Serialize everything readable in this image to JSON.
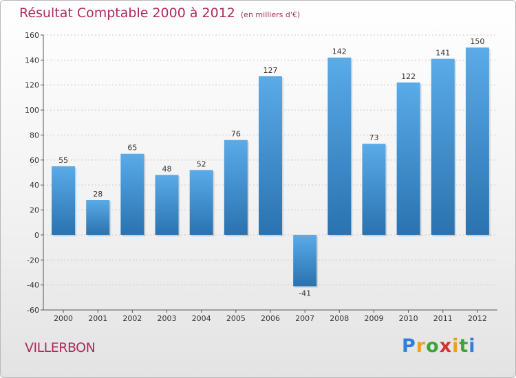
{
  "title": "Résultat Comptable 2000 à 2012",
  "unit": "(en milliers d'€)",
  "town": "VILLERBON",
  "logo": {
    "letters": [
      "P",
      "r",
      "o",
      "x",
      "i",
      "t",
      "i"
    ],
    "colors": [
      "#2f7ed8",
      "#e8a31c",
      "#3aa63a",
      "#d83030",
      "#e8a31c",
      "#3aa63a",
      "#2f7ed8"
    ]
  },
  "colors": {
    "bar_top": "#5aabe8",
    "bar_bottom": "#2a72b0",
    "accent": "#b0285a"
  },
  "chart_data": {
    "type": "bar",
    "title": "Résultat Comptable 2000 à 2012",
    "categories": [
      "2000",
      "2001",
      "2002",
      "2003",
      "2004",
      "2005",
      "2006",
      "2007",
      "2008",
      "2009",
      "2010",
      "2011",
      "2012"
    ],
    "values": [
      55,
      28,
      65,
      48,
      52,
      76,
      127,
      -41,
      142,
      73,
      122,
      141,
      150
    ],
    "ylim": [
      -60,
      160
    ],
    "yticks": [
      -60,
      -40,
      -20,
      0,
      20,
      40,
      60,
      80,
      100,
      120,
      140,
      160
    ],
    "xlabel": "",
    "ylabel": "",
    "grid": true
  }
}
